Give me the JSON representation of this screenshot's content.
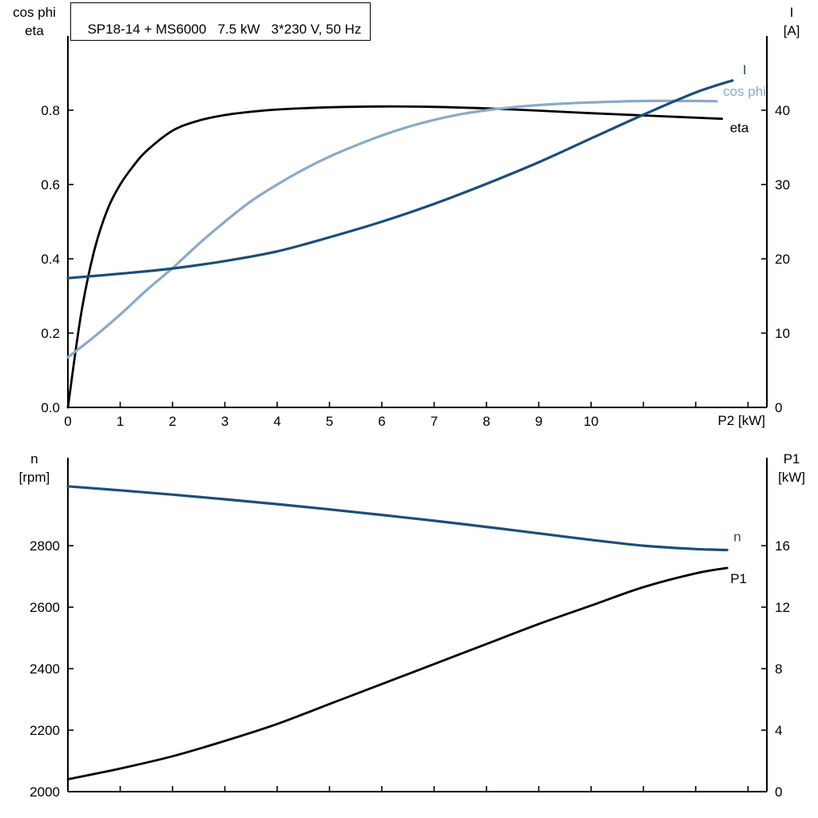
{
  "title_box": {
    "text": "SP18-14 + MS6000   7.5 kW   3*230 V, 50 Hz"
  },
  "colors": {
    "black": "#000000",
    "dark_blue": "#1b4e79",
    "light_blue": "#8aa9c9"
  },
  "chart_data": [
    {
      "type": "line",
      "title": "SP18-14 + MS6000   7.5 kW   3*230 V, 50 Hz",
      "grid": false,
      "legend_position": "curve-end-labels",
      "x_axis": {
        "label": "P2 [kW]",
        "min": 0,
        "max": 13.36,
        "tick_labels": [
          "0",
          "1",
          "2",
          "3",
          "4",
          "5",
          "6",
          "7",
          "8",
          "9",
          "10"
        ]
      },
      "y_left": {
        "label_lines": [
          "cos phi",
          "eta"
        ],
        "min": 0,
        "max": 1.0,
        "tick_labels": [
          "0.0",
          "0.2",
          "0.4",
          "0.6",
          "0.8"
        ]
      },
      "y_right": {
        "label_lines": [
          "I",
          "[A]"
        ],
        "min": 0,
        "max": 50,
        "tick_labels": [
          "0",
          "10",
          "20",
          "30",
          "40"
        ]
      },
      "series": [
        {
          "name": "eta",
          "axis": "left",
          "color": "#000000",
          "width": 2.8,
          "label_dx": 10,
          "label_dy": 17,
          "x": [
            0,
            0.25,
            0.5,
            0.75,
            1,
            1.25,
            1.5,
            2,
            2.5,
            3,
            3.5,
            4,
            5,
            6,
            7,
            8,
            9,
            10,
            11,
            12,
            12.5
          ],
          "y": [
            0,
            0.25,
            0.42,
            0.53,
            0.6,
            0.65,
            0.69,
            0.745,
            0.772,
            0.787,
            0.796,
            0.802,
            0.808,
            0.81,
            0.809,
            0.805,
            0.799,
            0.792,
            0.786,
            0.78,
            0.777
          ]
        },
        {
          "name": "cos phi",
          "axis": "left",
          "color": "#8aa9c9",
          "width": 3.2,
          "label_dx": 8,
          "label_dy": -7,
          "x": [
            0,
            0.5,
            1,
            1.5,
            2,
            2.5,
            3,
            3.5,
            4,
            4.5,
            5,
            5.5,
            6,
            6.5,
            7,
            7.5,
            8,
            8.5,
            9,
            9.5,
            10,
            11,
            12,
            12.4
          ],
          "y": [
            0.135,
            0.19,
            0.25,
            0.315,
            0.375,
            0.44,
            0.5,
            0.555,
            0.6,
            0.64,
            0.675,
            0.705,
            0.732,
            0.755,
            0.774,
            0.789,
            0.8,
            0.808,
            0.814,
            0.818,
            0.821,
            0.825,
            0.825,
            0.824
          ]
        },
        {
          "name": "I",
          "axis": "right",
          "color": "#1b4e79",
          "width": 3.2,
          "label_dx": 13,
          "label_dy": -8,
          "x": [
            0,
            1,
            2,
            3,
            4,
            5,
            6,
            7,
            8,
            9,
            10,
            11,
            12,
            12.7
          ],
          "y": [
            17.4,
            18.0,
            18.7,
            19.7,
            21.0,
            22.9,
            25.0,
            27.4,
            30.1,
            33.0,
            36.2,
            39.4,
            42.4,
            44.0
          ]
        }
      ]
    },
    {
      "type": "line",
      "title": "",
      "grid": false,
      "legend_position": "curve-end-labels",
      "x_axis": {
        "label": "",
        "min": 0,
        "max": 13.36,
        "tick_labels": []
      },
      "y_left": {
        "label_lines": [
          "n",
          "[rpm]"
        ],
        "min": 2000,
        "max": 3086,
        "tick_labels": [
          "2000",
          "2200",
          "2400",
          "2600",
          "2800"
        ]
      },
      "y_right": {
        "label_lines": [
          "P1",
          "[kW]"
        ],
        "min": 0,
        "max": 21.72,
        "tick_labels": [
          "0",
          "4",
          "8",
          "12",
          "16"
        ]
      },
      "series": [
        {
          "name": "n",
          "axis": "left",
          "color": "#1b4e79",
          "width": 3.2,
          "label_dx": 8,
          "label_dy": -11,
          "x": [
            0,
            1,
            2,
            3,
            4,
            5,
            6,
            7,
            8,
            9,
            10,
            11,
            12,
            12.6
          ],
          "y": [
            2993,
            2980,
            2966,
            2951,
            2935,
            2918,
            2900,
            2881,
            2861,
            2840,
            2819,
            2800,
            2789,
            2786
          ]
        },
        {
          "name": "P1",
          "axis": "right",
          "color": "#000000",
          "width": 2.8,
          "label_dx": 4,
          "label_dy": 19,
          "x": [
            0,
            1,
            2,
            3,
            4,
            5,
            6,
            7,
            8,
            9,
            10,
            11,
            12,
            12.6
          ],
          "y": [
            0.8,
            1.5,
            2.3,
            3.3,
            4.4,
            5.7,
            7.0,
            8.3,
            9.6,
            10.9,
            12.1,
            13.3,
            14.2,
            14.55
          ]
        }
      ]
    }
  ]
}
